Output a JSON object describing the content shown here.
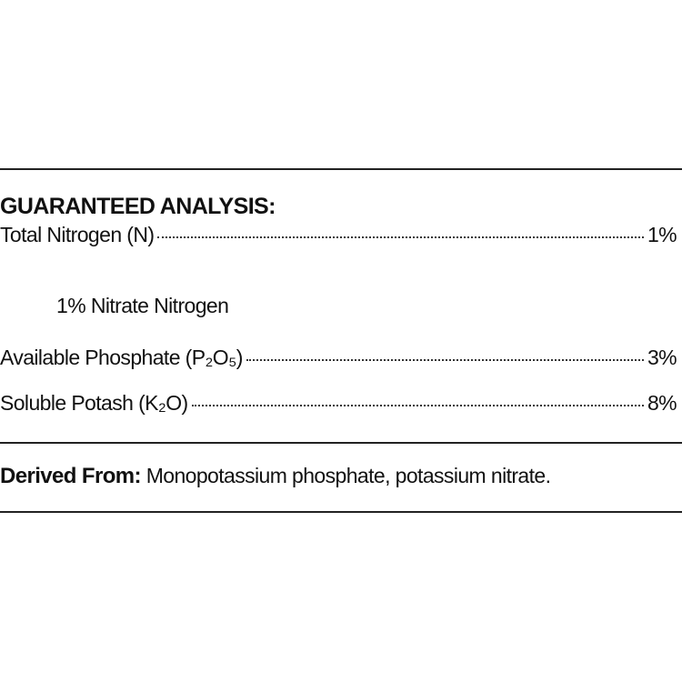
{
  "heading": "GUARANTEED ANALYSIS:",
  "rows": [
    {
      "label": "Total Nitrogen (N)",
      "value": "1%"
    },
    {
      "label": "Available Phosphate (P₂O₅)",
      "value": "3%"
    },
    {
      "label": "Soluble Potash (K₂O)",
      "value": "8%"
    }
  ],
  "sub_item": "1% Nitrate Nitrogen",
  "derived": {
    "label": "Derived From:",
    "text": "Monopotassium phosphate, potassium nitrate."
  }
}
